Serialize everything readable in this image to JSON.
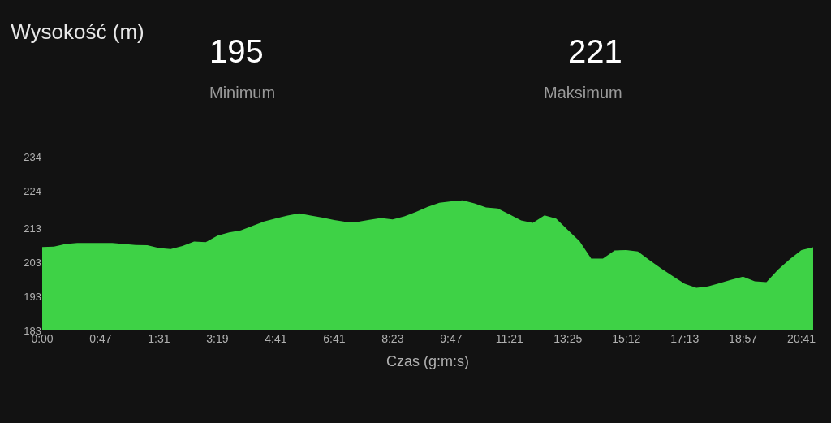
{
  "chart_data": {
    "type": "area",
    "title": "Wysokość (m)",
    "xlabel": "Czas (g:m:s)",
    "annotations": [
      "195",
      "Minimum",
      "221",
      "Maksimum"
    ],
    "categories": [
      "0:00",
      null,
      null,
      null,
      null,
      "0:47",
      null,
      null,
      null,
      null,
      "1:31",
      null,
      null,
      null,
      null,
      "3:19",
      null,
      null,
      null,
      null,
      "4:41",
      null,
      null,
      null,
      null,
      "6:41",
      null,
      null,
      null,
      null,
      "8:23",
      null,
      null,
      null,
      null,
      "9:47",
      null,
      null,
      null,
      null,
      "11:21",
      null,
      null,
      null,
      null,
      "13:25",
      null,
      null,
      null,
      null,
      "15:12",
      null,
      null,
      null,
      null,
      "17:13",
      null,
      null,
      null,
      null,
      "18:57",
      null,
      null,
      null,
      null,
      "20:41",
      null
    ],
    "series": [
      {
        "color": "#3ed246",
        "values": [
          207.5,
          207.6,
          208.4,
          208.7,
          208.7,
          208.7,
          208.7,
          208.4,
          208.1,
          208.0,
          207.2,
          206.9,
          207.8,
          209.1,
          208.9,
          210.8,
          211.8,
          212.4,
          213.7,
          215.0,
          215.9,
          216.7,
          217.4,
          216.7,
          216.1,
          215.4,
          214.9,
          214.9,
          215.5,
          216.0,
          215.6,
          216.5,
          217.8,
          219.3,
          220.5,
          220.9,
          221.2,
          220.3,
          219.1,
          218.8,
          217.1,
          215.3,
          214.6,
          216.8,
          215.8,
          212.5,
          209.2,
          204.1,
          204.1,
          206.5,
          206.6,
          206.2,
          203.6,
          201.2,
          198.9,
          196.7,
          195.5,
          195.9,
          196.9,
          197.9,
          198.8,
          197.4,
          197.2,
          200.9,
          203.9,
          206.6,
          207.4
        ]
      }
    ],
    "ylim": [
      183,
      234
    ],
    "yticks": [
      183,
      193,
      203,
      213,
      224,
      234
    ],
    "grid": false
  }
}
